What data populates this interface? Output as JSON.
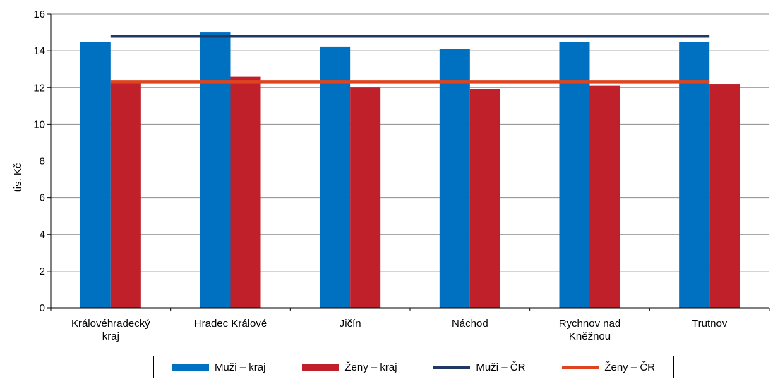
{
  "chart_data": {
    "type": "bar",
    "categories": [
      [
        "Královéhradecký",
        "kraj"
      ],
      [
        "Hradec Králové"
      ],
      [
        "Jičín"
      ],
      [
        "Náchod"
      ],
      [
        "Rychnov nad",
        "Kněžnou"
      ],
      [
        "Trutnov"
      ]
    ],
    "series": [
      {
        "name": "Muži – kraj",
        "type": "bar",
        "color": "#0070C0",
        "values": [
          14.5,
          15.0,
          14.2,
          14.1,
          14.5,
          14.5
        ]
      },
      {
        "name": "Ženy – kraj",
        "type": "bar",
        "color": "#C0202A",
        "values": [
          12.3,
          12.6,
          12.0,
          11.9,
          12.1,
          12.2
        ]
      },
      {
        "name": "Muži – ČR",
        "type": "line",
        "color": "#1F3864",
        "value": 14.8
      },
      {
        "name": "Ženy – ČR",
        "type": "line",
        "color": "#E0441E",
        "value": 12.3
      }
    ],
    "ylabel": "tis. Kč",
    "ylim": [
      0,
      16
    ],
    "yticks": [
      0,
      2,
      4,
      6,
      8,
      10,
      12,
      14,
      16
    ],
    "grid": true,
    "legend": "bottom"
  }
}
